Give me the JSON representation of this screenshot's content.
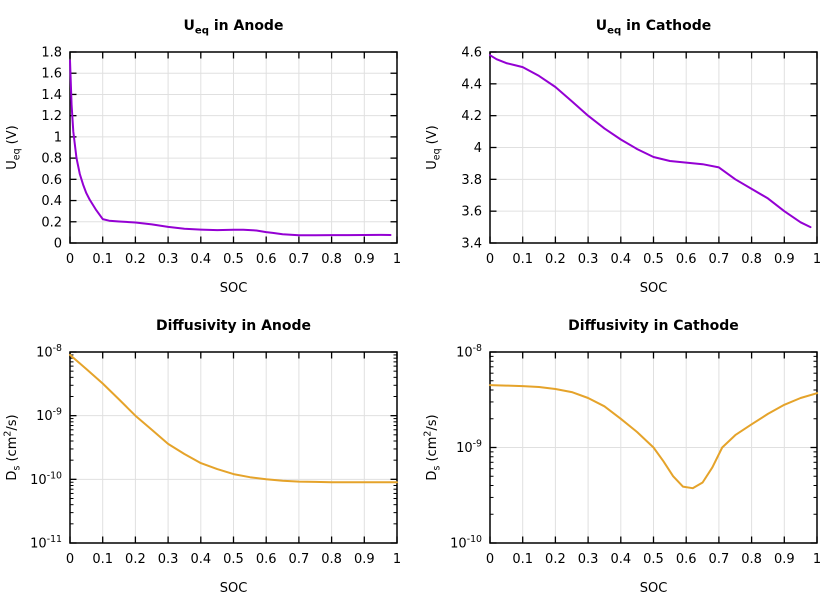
{
  "figure": {
    "background": "#ffffff",
    "grid_color": "#e0e0e0",
    "axis_color": "#000000",
    "text_color": "#000000",
    "tick_font_size": 13,
    "label_font_size": 13,
    "title_font_size": 14,
    "line_width": 2
  },
  "chart_data": [
    {
      "id": "ueq-anode",
      "type": "line",
      "title": "U_eq in Anode",
      "title_rich": [
        [
          "U",
          ""
        ],
        [
          "eq",
          "sub"
        ],
        [
          " in Anode",
          ""
        ]
      ],
      "xlabel": "SOC",
      "ylabel": "U_eq (V)",
      "ylabel_rich": [
        [
          "U",
          ""
        ],
        [
          "eq",
          "sub"
        ],
        [
          " (V)",
          ""
        ]
      ],
      "color": "#9400d3",
      "grid": true,
      "x_axis": {
        "min": 0,
        "max": 1,
        "ticks": [
          0,
          0.1,
          0.2,
          0.3,
          0.4,
          0.5,
          0.6,
          0.7,
          0.8,
          0.9,
          1
        ],
        "labels": [
          "0",
          "0.1",
          "0.2",
          "0.3",
          "0.4",
          "0.5",
          "0.6",
          "0.7",
          "0.8",
          "0.9",
          "1"
        ]
      },
      "y_axis": {
        "scale": "linear",
        "min": 0,
        "max": 1.8,
        "ticks": [
          0,
          0.2,
          0.4,
          0.6,
          0.8,
          1,
          1.2,
          1.4,
          1.6,
          1.8
        ],
        "labels": [
          "0",
          "0.2",
          "0.4",
          "0.6",
          "0.8",
          "1",
          "1.2",
          "1.4",
          "1.6",
          "1.8"
        ]
      },
      "points": {
        "x": [
          0,
          0.005,
          0.01,
          0.02,
          0.03,
          0.04,
          0.05,
          0.06,
          0.08,
          0.1,
          0.12,
          0.15,
          0.2,
          0.25,
          0.3,
          0.35,
          0.4,
          0.45,
          0.5,
          0.53,
          0.57,
          0.6,
          0.62,
          0.65,
          0.7,
          0.75,
          0.8,
          0.85,
          0.9,
          0.95,
          0.98
        ],
        "y": [
          1.72,
          1.3,
          1.05,
          0.8,
          0.65,
          0.55,
          0.47,
          0.41,
          0.31,
          0.225,
          0.21,
          0.203,
          0.193,
          0.175,
          0.152,
          0.134,
          0.126,
          0.122,
          0.125,
          0.124,
          0.118,
          0.103,
          0.095,
          0.082,
          0.073,
          0.073,
          0.074,
          0.074,
          0.075,
          0.076,
          0.075
        ]
      }
    },
    {
      "id": "ueq-cathode",
      "type": "line",
      "title": "U_eq in Cathode",
      "title_rich": [
        [
          "U",
          ""
        ],
        [
          "eq",
          "sub"
        ],
        [
          " in Cathode",
          ""
        ]
      ],
      "xlabel": "SOC",
      "ylabel": "U_eq (V)",
      "ylabel_rich": [
        [
          "U",
          ""
        ],
        [
          "eq",
          "sub"
        ],
        [
          " (V)",
          ""
        ]
      ],
      "color": "#9400d3",
      "grid": true,
      "x_axis": {
        "min": 0,
        "max": 1,
        "ticks": [
          0,
          0.1,
          0.2,
          0.3,
          0.4,
          0.5,
          0.6,
          0.7,
          0.8,
          0.9,
          1
        ],
        "labels": [
          "0",
          "0.1",
          "0.2",
          "0.3",
          "0.4",
          "0.5",
          "0.6",
          "0.7",
          "0.8",
          "0.9",
          "1"
        ]
      },
      "y_axis": {
        "scale": "linear",
        "min": 3.4,
        "max": 4.6,
        "ticks": [
          3.4,
          3.6,
          3.8,
          4,
          4.2,
          4.4,
          4.6
        ],
        "labels": [
          "3.4",
          "3.6",
          "3.8",
          "4",
          "4.2",
          "4.4",
          "4.6"
        ]
      },
      "points": {
        "x": [
          0,
          0.02,
          0.05,
          0.08,
          0.1,
          0.15,
          0.2,
          0.25,
          0.3,
          0.35,
          0.4,
          0.45,
          0.5,
          0.55,
          0.6,
          0.65,
          0.7,
          0.75,
          0.8,
          0.85,
          0.9,
          0.95,
          0.98
        ],
        "y": [
          4.58,
          4.555,
          4.53,
          4.515,
          4.505,
          4.45,
          4.38,
          4.29,
          4.2,
          4.12,
          4.05,
          3.99,
          3.94,
          3.915,
          3.905,
          3.895,
          3.875,
          3.8,
          3.74,
          3.68,
          3.6,
          3.53,
          3.5
        ]
      }
    },
    {
      "id": "ds-anode",
      "type": "line",
      "title": "Diffusivity in Anode",
      "title_rich": [
        [
          "Diffusivity in Anode",
          ""
        ]
      ],
      "xlabel": "SOC",
      "ylabel": "D_s (cm^2/s)",
      "ylabel_rich": [
        [
          "D",
          ""
        ],
        [
          "s",
          "sub"
        ],
        [
          " (cm",
          ""
        ],
        [
          "2",
          "sup"
        ],
        [
          "/s)",
          ""
        ]
      ],
      "color": "#e5a32a",
      "grid": true,
      "x_axis": {
        "min": 0,
        "max": 1,
        "ticks": [
          0,
          0.1,
          0.2,
          0.3,
          0.4,
          0.5,
          0.6,
          0.7,
          0.8,
          0.9,
          1
        ],
        "labels": [
          "0",
          "0.1",
          "0.2",
          "0.3",
          "0.4",
          "0.5",
          "0.6",
          "0.7",
          "0.8",
          "0.9",
          "1"
        ]
      },
      "y_axis": {
        "scale": "log",
        "ticks_exp": [
          -11,
          -10,
          -9,
          -8
        ],
        "minor_mantissas": [
          2,
          3,
          4,
          5,
          6,
          7,
          8,
          9
        ]
      },
      "points": {
        "x": [
          0,
          0.05,
          0.1,
          0.15,
          0.2,
          0.25,
          0.3,
          0.35,
          0.4,
          0.45,
          0.5,
          0.55,
          0.6,
          0.65,
          0.7,
          0.75,
          0.8,
          0.85,
          0.9,
          0.95,
          1.0
        ],
        "y": [
          9e-09,
          5.4e-09,
          3.2e-09,
          1.8e-09,
          1e-09,
          6e-10,
          3.6e-10,
          2.5e-10,
          1.8e-10,
          1.45e-10,
          1.21e-10,
          1.08e-10,
          1e-10,
          9.5e-11,
          9.2e-11,
          9.1e-11,
          9e-11,
          9e-11,
          9e-11,
          9e-11,
          9e-11
        ]
      }
    },
    {
      "id": "ds-cathode",
      "type": "line",
      "title": "Diffusivity in Cathode",
      "title_rich": [
        [
          "Diffusivity in Cathode",
          ""
        ]
      ],
      "xlabel": "SOC",
      "ylabel": "D_s (cm^2/s)",
      "ylabel_rich": [
        [
          "D",
          ""
        ],
        [
          "s",
          "sub"
        ],
        [
          " (cm",
          ""
        ],
        [
          "2",
          "sup"
        ],
        [
          "/s)",
          ""
        ]
      ],
      "color": "#e5a32a",
      "grid": true,
      "x_axis": {
        "min": 0,
        "max": 1,
        "ticks": [
          0,
          0.1,
          0.2,
          0.3,
          0.4,
          0.5,
          0.6,
          0.7,
          0.8,
          0.9,
          1
        ],
        "labels": [
          "0",
          "0.1",
          "0.2",
          "0.3",
          "0.4",
          "0.5",
          "0.6",
          "0.7",
          "0.8",
          "0.9",
          "1"
        ]
      },
      "y_axis": {
        "scale": "log",
        "ticks_exp": [
          -10,
          -9,
          -8
        ],
        "minor_mantissas": [
          2,
          3,
          4,
          5,
          6,
          7,
          8,
          9
        ]
      },
      "points": {
        "x": [
          0,
          0.05,
          0.1,
          0.15,
          0.2,
          0.25,
          0.3,
          0.35,
          0.4,
          0.45,
          0.5,
          0.53,
          0.56,
          0.59,
          0.62,
          0.65,
          0.68,
          0.71,
          0.75,
          0.8,
          0.85,
          0.9,
          0.95,
          1.0
        ],
        "y": [
          4.5e-09,
          4.45e-09,
          4.4e-09,
          4.3e-09,
          4.1e-09,
          3.8e-09,
          3.3e-09,
          2.7e-09,
          2e-09,
          1.45e-09,
          1e-09,
          7.2e-10,
          5e-10,
          3.9e-10,
          3.75e-10,
          4.3e-10,
          6.2e-10,
          1e-09,
          1.35e-09,
          1.75e-09,
          2.25e-09,
          2.8e-09,
          3.3e-09,
          3.7e-09
        ]
      }
    }
  ]
}
